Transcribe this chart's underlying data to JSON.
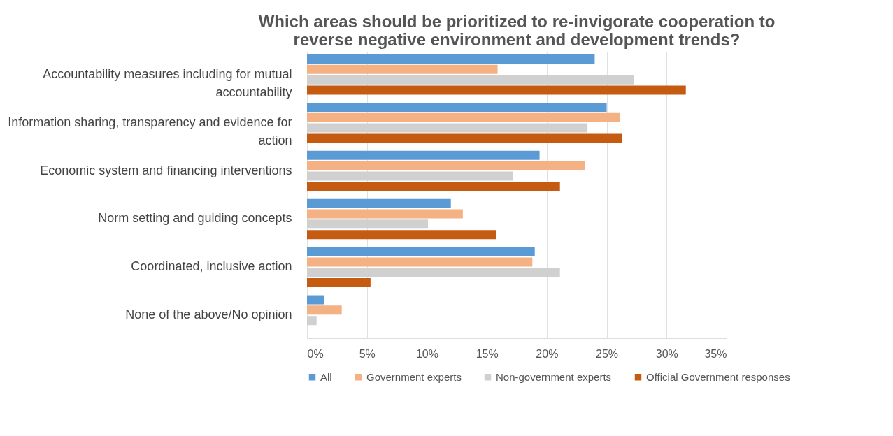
{
  "chart_data": {
    "type": "bar",
    "orientation": "horizontal",
    "title": [
      "Which areas  should be prioritized to re-invigorate cooperation to",
      "reverse negative environment and development trends?"
    ],
    "categories": [
      "Accountability measures including for mutual accountability",
      "Information sharing, transparency and evidence for action",
      "Economic system and financing interventions",
      "Norm setting and guiding concepts",
      "Coordinated, inclusive action",
      "None of the above/No opinion"
    ],
    "series": [
      {
        "name": "All",
        "color": "#5b9bd5",
        "values": [
          24.0,
          25.0,
          19.4,
          12.0,
          19.0,
          1.4
        ]
      },
      {
        "name": "Government experts",
        "color": "#f4b183",
        "values": [
          15.9,
          26.1,
          23.2,
          13.0,
          18.8,
          2.9
        ]
      },
      {
        "name": "Non-government experts",
        "color": "#d0d0d0",
        "values": [
          27.3,
          23.4,
          17.2,
          10.1,
          21.1,
          0.8
        ]
      },
      {
        "name": "Official Government responses",
        "color": "#c55a11",
        "values": [
          31.6,
          26.3,
          21.1,
          15.8,
          5.3,
          null
        ]
      }
    ],
    "xlim": [
      0,
      35
    ],
    "xticks": [
      {
        "value": 0,
        "label": "0%"
      },
      {
        "value": 5,
        "label": "5%"
      },
      {
        "value": 10,
        "label": "10%"
      },
      {
        "value": 15,
        "label": "15%"
      },
      {
        "value": 20,
        "label": "20%"
      },
      {
        "value": 25,
        "label": "25%"
      },
      {
        "value": 30,
        "label": "30%"
      },
      {
        "value": 35,
        "label": "35%"
      }
    ],
    "grid": "x",
    "legend": "bottom"
  }
}
